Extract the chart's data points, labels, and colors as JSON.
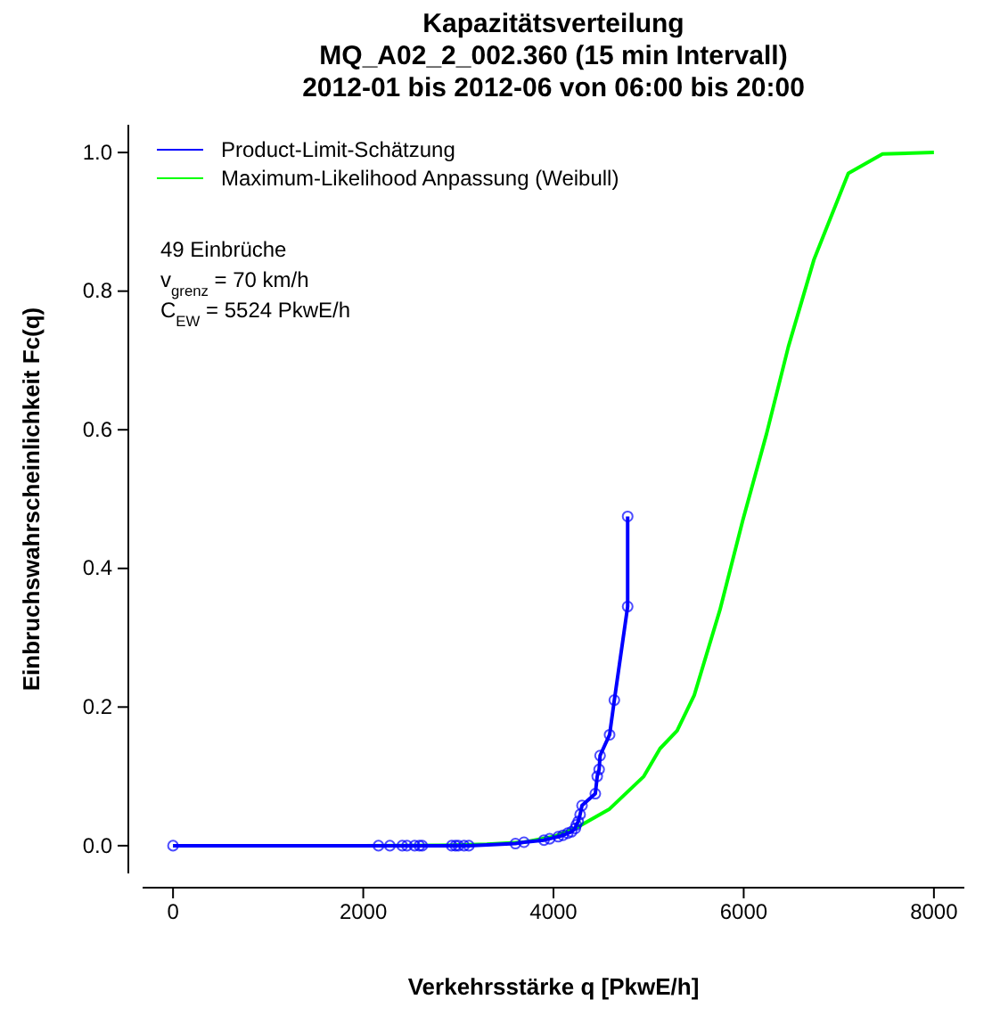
{
  "chart_data": {
    "type": "line",
    "title": "Kapazitätsverteilung",
    "subtitle": "MQ_A02_2_002.360 (15 min Intervall)\n2012-01 bis 2012-06 von 06:00 bis 20:00",
    "xlabel": "Verkehrsstärke q [PkwE/h]",
    "ylabel": "Einbruchswahrscheinlichkeit Fc(q)",
    "xlim": [
      -320,
      8320
    ],
    "ylim": [
      -0.04,
      1.04
    ],
    "xticks": [
      0,
      2000,
      4000,
      6000,
      8000
    ],
    "yticks": [
      {
        "value": 0,
        "label": "0.0"
      },
      {
        "value": 0.2,
        "label": "0.2"
      },
      {
        "value": 0.4,
        "label": "0.4"
      },
      {
        "value": 0.6,
        "label": "0.6"
      },
      {
        "value": 0.8,
        "label": "0.8"
      },
      {
        "value": 1,
        "label": "1.0"
      }
    ],
    "grid": false,
    "legend": "top left",
    "annotations": [
      "49 Einbrüche",
      "v$_{grenz}$ = 70 km/h",
      "C$_{EW}$ = 5524 PkwE/h"
    ],
    "series": [
      {
        "name": "Product-Limit-Schätzung",
        "color": "#0000ff",
        "marker": "circle",
        "x": [
          0,
          2160,
          2280,
          2410,
          2460,
          2540,
          2590,
          2620,
          2930,
          2970,
          3000,
          3060,
          3110,
          3600,
          3690,
          3900,
          3960,
          4050,
          4100,
          4150,
          4190,
          4230,
          4240,
          4260,
          4280,
          4300,
          4440,
          4460,
          4480,
          4490,
          4590,
          4640,
          4780,
          4780
        ],
        "values": [
          0,
          0,
          0,
          0,
          0,
          0,
          0,
          0,
          0,
          0,
          0,
          0,
          0,
          0.003,
          0.005,
          0.008,
          0.01,
          0.013,
          0.015,
          0.018,
          0.02,
          0.025,
          0.03,
          0.035,
          0.045,
          0.058,
          0.075,
          0.1,
          0.11,
          0.13,
          0.16,
          0.21,
          0.345,
          0.475
        ]
      },
      {
        "name": "Maximum-Likelihood Anpassung (Weibull)",
        "color": "#00ff00",
        "marker": "none",
        "x": [
          0,
          2000,
          2800,
          3300,
          3690,
          4000,
          4230,
          4590,
          4950,
          5120,
          5300,
          5480,
          5750,
          5990,
          6240,
          6470,
          6740,
          7100,
          7460,
          8000
        ],
        "values": [
          0,
          0,
          0.0005,
          0.002,
          0.005,
          0.013,
          0.025,
          0.053,
          0.1,
          0.14,
          0.166,
          0.217,
          0.34,
          0.469,
          0.594,
          0.72,
          0.846,
          0.97,
          0.998,
          1.0
        ]
      }
    ]
  }
}
